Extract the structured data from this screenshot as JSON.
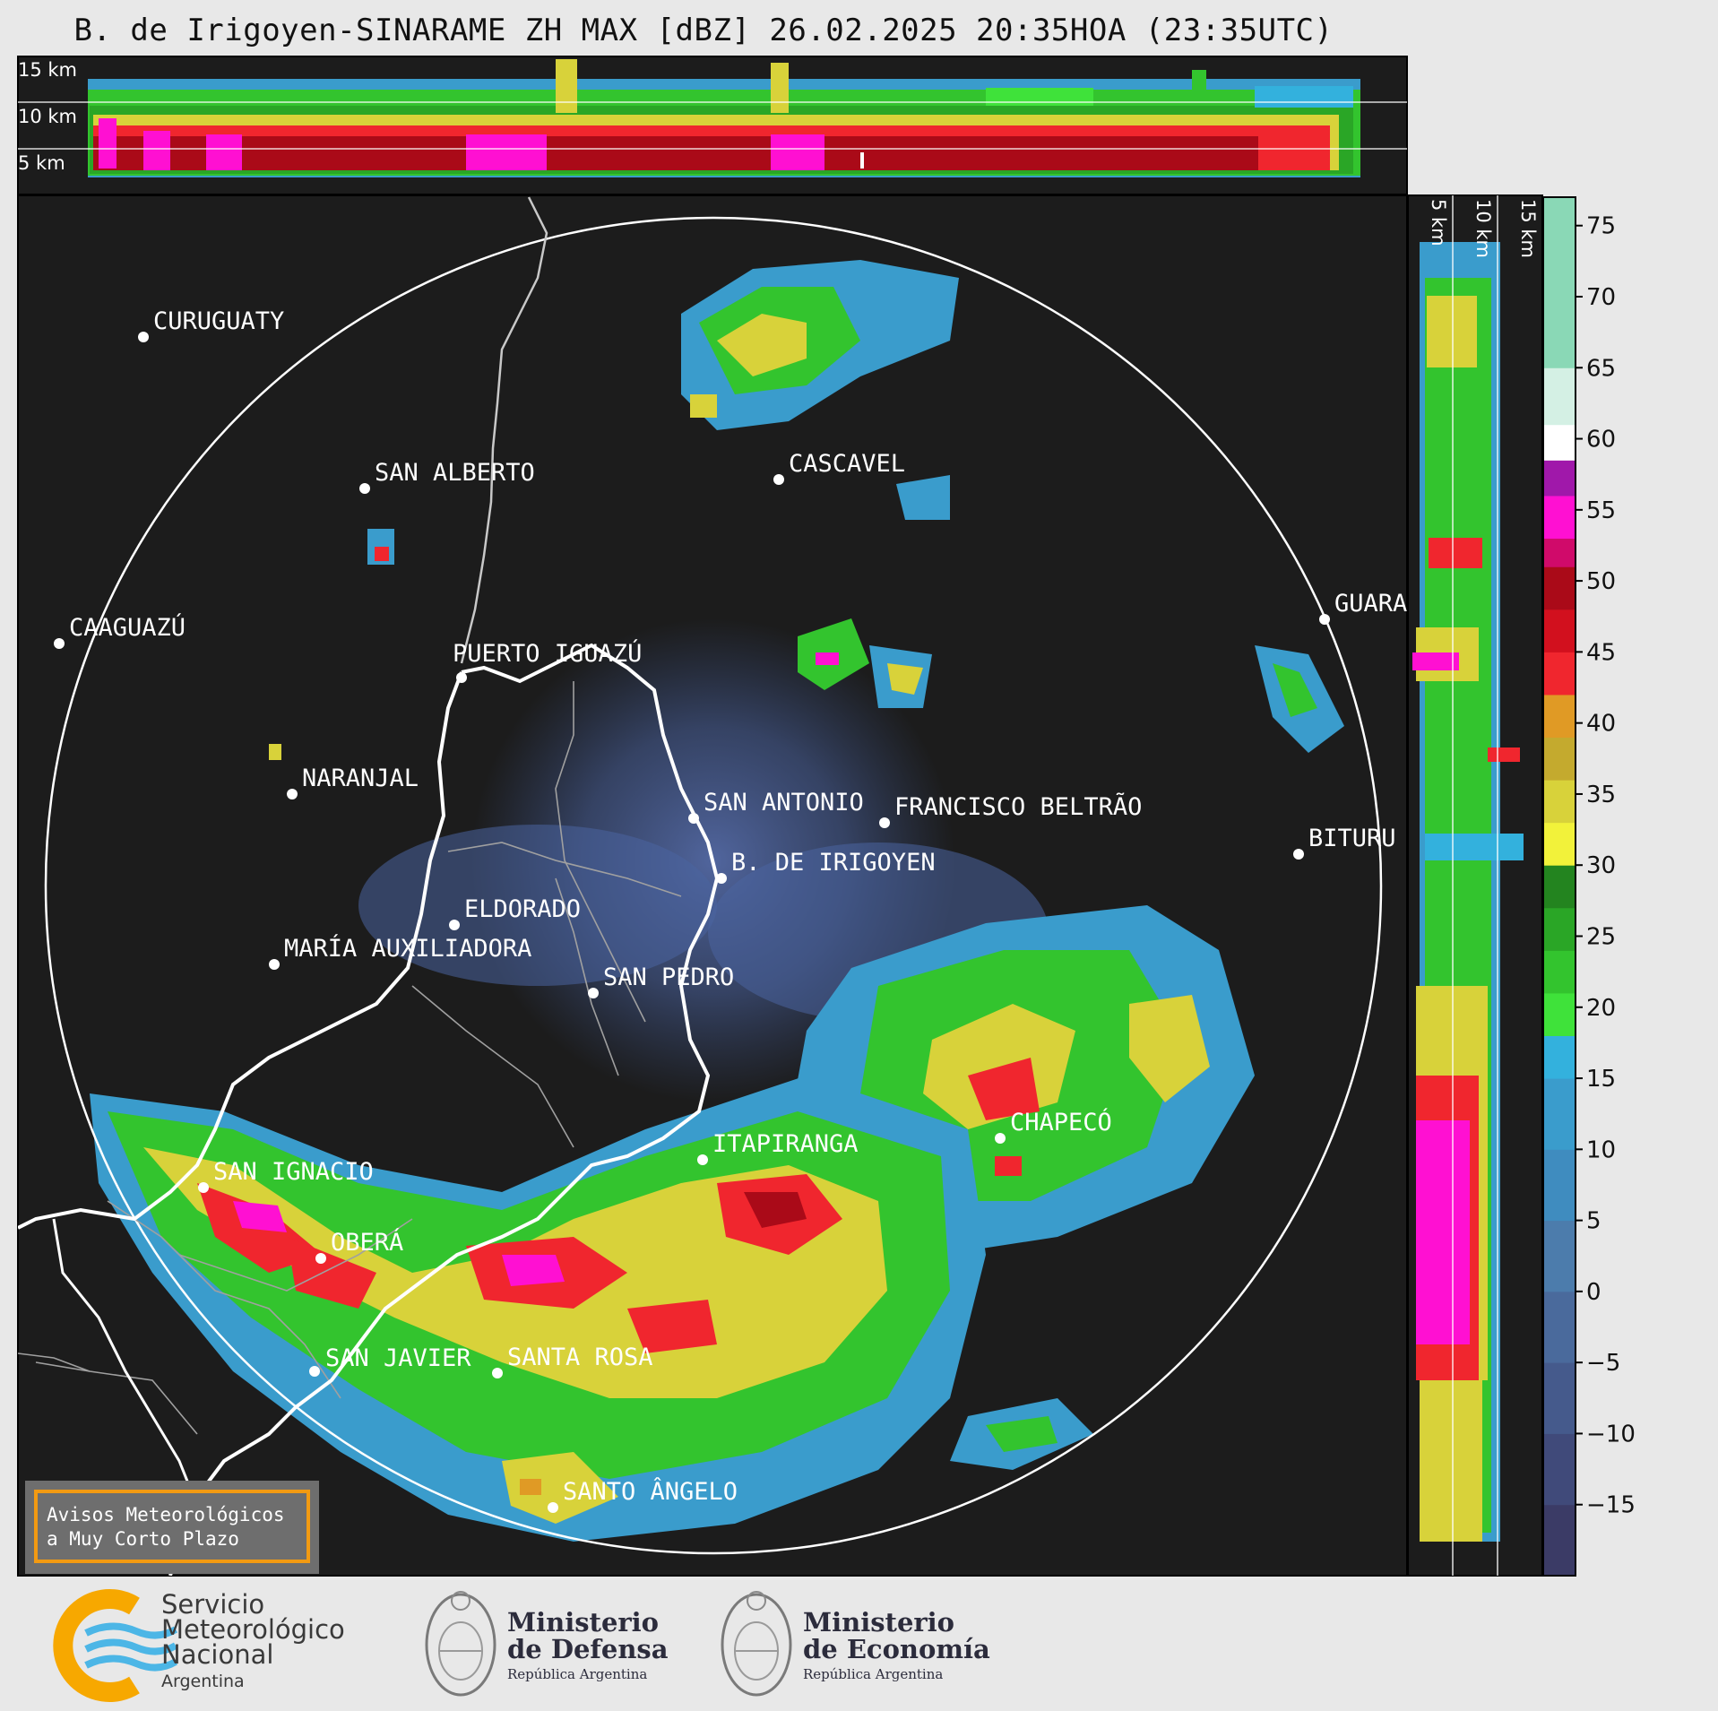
{
  "title": "B. de Irigoyen-SINARAME ZH MAX [dBZ] 26.02.2025 20:35HOA (23:35UTC)",
  "top_panel": {
    "height_labels": [
      "15 km",
      "10 km",
      "5 km"
    ]
  },
  "side_panel": {
    "height_labels": [
      "5 km",
      "10 km",
      "15 km"
    ]
  },
  "colorbar": {
    "ticks": [
      "75",
      "70",
      "65",
      "60",
      "55",
      "50",
      "45",
      "40",
      "35",
      "30",
      "25",
      "20",
      "15",
      "10",
      "5",
      "0",
      "−5",
      "−10",
      "−15"
    ],
    "range": [
      -20,
      77
    ],
    "color_stops": [
      {
        "from": -20,
        "to": -15,
        "color": "#3b3b66"
      },
      {
        "from": -15,
        "to": -10,
        "color": "#404a7a"
      },
      {
        "from": -10,
        "to": -5,
        "color": "#455a8c"
      },
      {
        "from": -5,
        "to": 0,
        "color": "#4a6a9c"
      },
      {
        "from": 0,
        "to": 5,
        "color": "#4c7cac"
      },
      {
        "from": 5,
        "to": 10,
        "color": "#3f8cbf"
      },
      {
        "from": 10,
        "to": 15,
        "color": "#3a9ccc"
      },
      {
        "from": 15,
        "to": 18,
        "color": "#33b1dd"
      },
      {
        "from": 18,
        "to": 21,
        "color": "#3fe23a"
      },
      {
        "from": 21,
        "to": 24,
        "color": "#33c42e"
      },
      {
        "from": 24,
        "to": 27,
        "color": "#2aa626"
      },
      {
        "from": 27,
        "to": 30,
        "color": "#23841f"
      },
      {
        "from": 30,
        "to": 33,
        "color": "#f2f23a"
      },
      {
        "from": 33,
        "to": 36,
        "color": "#d8d23a"
      },
      {
        "from": 36,
        "to": 39,
        "color": "#c4aa2e"
      },
      {
        "from": 39,
        "to": 42,
        "color": "#e09a25"
      },
      {
        "from": 42,
        "to": 45,
        "color": "#f0262e"
      },
      {
        "from": 45,
        "to": 48,
        "color": "#d2101e"
      },
      {
        "from": 48,
        "to": 51,
        "color": "#aa0a18"
      },
      {
        "from": 51,
        "to": 53,
        "color": "#d00a6a"
      },
      {
        "from": 53,
        "to": 56,
        "color": "#ff10d2"
      },
      {
        "from": 56,
        "to": 58.5,
        "color": "#a018aa"
      },
      {
        "from": 58.5,
        "to": 61,
        "color": "#ffffff"
      },
      {
        "from": 61,
        "to": 65,
        "color": "#d4f0e4"
      },
      {
        "from": 65,
        "to": 77,
        "color": "#8ad8b6"
      }
    ]
  },
  "cities": [
    {
      "name": "CURUGUATY"
    },
    {
      "name": "SAN ALBERTO"
    },
    {
      "name": "CAAGUAZÚ"
    },
    {
      "name": "CASCAVEL"
    },
    {
      "name": "PUERTO IGUAZÚ"
    },
    {
      "name": "NARANJAL"
    },
    {
      "name": "GUARA"
    },
    {
      "name": "SAN ANTONIO"
    },
    {
      "name": "FRANCISCO BELTRÃO"
    },
    {
      "name": "B. DE IRIGOYEN"
    },
    {
      "name": "BITURU"
    },
    {
      "name": "ELDORADO"
    },
    {
      "name": "MARÍA AUXILIADORA"
    },
    {
      "name": "SAN PEDRO"
    },
    {
      "name": "CHAPECÓ"
    },
    {
      "name": "ITAPIRANGA"
    },
    {
      "name": "SAN IGNACIO"
    },
    {
      "name": "OBERÁ"
    },
    {
      "name": "SAN JAVIER"
    },
    {
      "name": "SANTA ROSA"
    },
    {
      "name": "SANTO ÂNGELO"
    }
  ],
  "warning_box": {
    "line1": "Avisos Meteorológicos",
    "line2": "a Muy Corto Plazo"
  },
  "footer": {
    "smn": {
      "line1": "Servicio",
      "line2": "Meteorológico",
      "line3": "Nacional",
      "line4": "Argentina"
    },
    "defensa": {
      "line1": "Ministerio",
      "line2": "de Defensa",
      "line3": "República Argentina"
    },
    "economia": {
      "line1": "Ministerio",
      "line2": "de Economía",
      "line3": "República Argentina"
    }
  },
  "colors": {
    "map_bg": "#1c1c1c",
    "range_ring": "#ffffff",
    "international_border": "#ffffff",
    "province_border": "#c0c0c0",
    "logo_orange": "#f7a800",
    "logo_blue": "#4cb6e6",
    "warning_border": "#f29a12",
    "warning_bg": "#6e6e6e"
  }
}
